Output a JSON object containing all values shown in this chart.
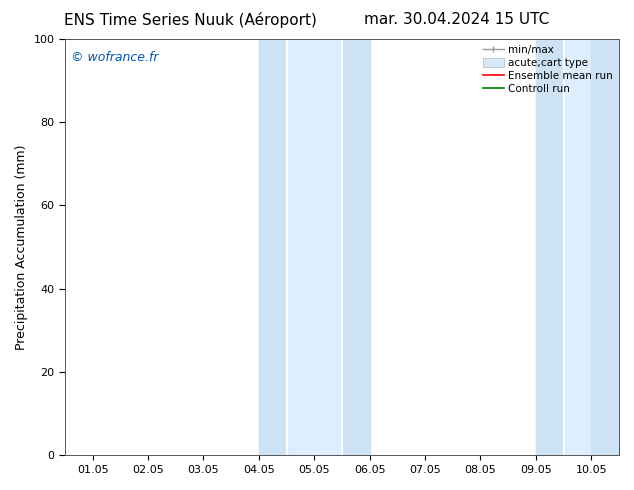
{
  "title_left": "ENS Time Series Nuuk (Aéroport)",
  "title_right": "mar. 30.04.2024 15 UTC",
  "ylabel": "Precipitation Accumulation (mm)",
  "ylim": [
    0,
    100
  ],
  "yticks": [
    0,
    20,
    40,
    60,
    80,
    100
  ],
  "x_tick_labels": [
    "01.05",
    "02.05",
    "03.05",
    "04.05",
    "05.05",
    "06.05",
    "07.05",
    "08.05",
    "09.05",
    "10.05"
  ],
  "x_tick_positions": [
    0,
    1,
    2,
    3,
    4,
    5,
    6,
    7,
    8,
    9
  ],
  "xlim": [
    -0.5,
    9.5
  ],
  "shaded_bands": [
    {
      "xmin": 3.0,
      "xmax": 3.35,
      "color": "#d8eaf8"
    },
    {
      "xmin": 3.35,
      "xmax": 4.0,
      "color": "#ddeeff"
    },
    {
      "xmin": 4.0,
      "xmax": 5.0,
      "color": "#d8eaf8"
    },
    {
      "xmin": 8.0,
      "xmax": 8.35,
      "color": "#d8eaf8"
    },
    {
      "xmin": 8.35,
      "xmax": 9.0,
      "color": "#ddeeff"
    },
    {
      "xmin": 9.0,
      "xmax": 9.5,
      "color": "#d8eaf8"
    }
  ],
  "shaded_regions_simple": [
    {
      "xmin": 3.0,
      "xmax": 5.0,
      "color": "#ddeeff"
    },
    {
      "xmin": 8.0,
      "xmax": 9.5,
      "color": "#ddeeff"
    }
  ],
  "vlines": [
    3.5,
    4.5,
    8.5
  ],
  "background_color": "#ffffff",
  "watermark_text": "© wofrance.fr",
  "watermark_color": "#0055bb",
  "title_fontsize": 11,
  "axis_label_fontsize": 9,
  "tick_fontsize": 8,
  "legend_fontsize": 7.5,
  "watermark_fontsize": 9
}
